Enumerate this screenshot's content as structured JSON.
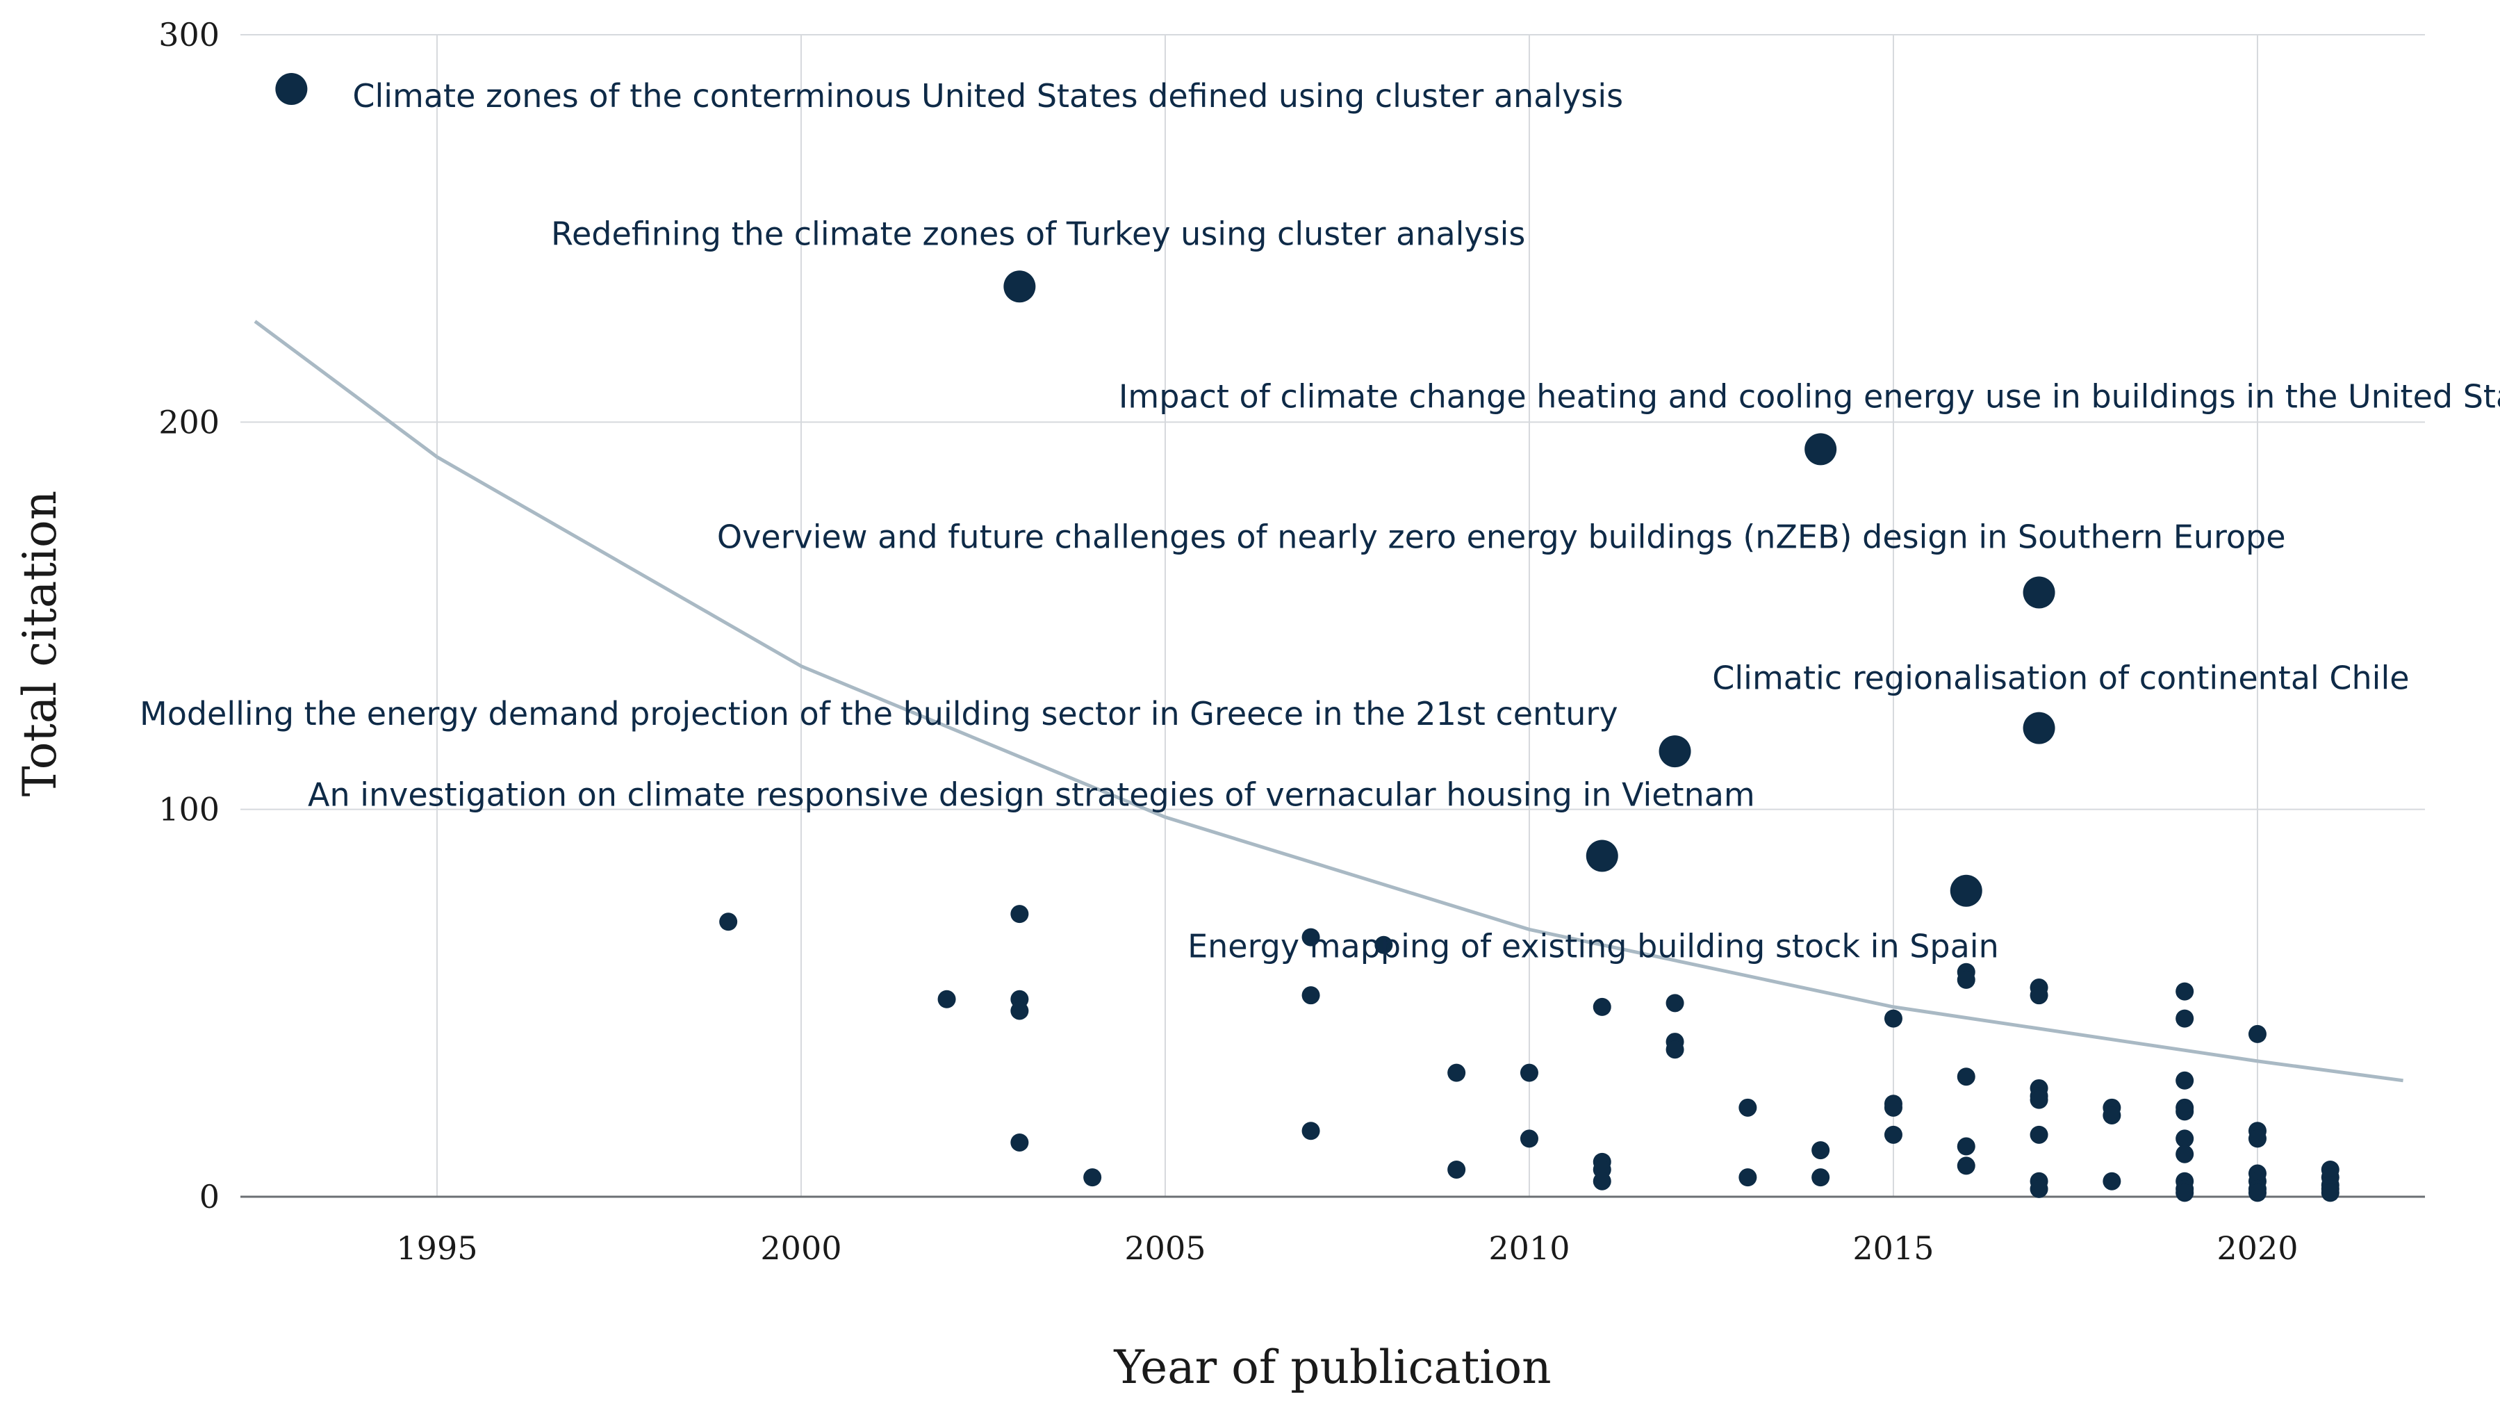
{
  "chart_data": {
    "type": "scatter",
    "title": "",
    "xlabel": "Year of publication",
    "ylabel": "Total citation",
    "xlim": [
      1992.3,
      2022.3
    ],
    "ylim": [
      0,
      300
    ],
    "xticks": [
      1995,
      2000,
      2005,
      2010,
      2015,
      2020
    ],
    "yticks": [
      0,
      100,
      200,
      300
    ],
    "grid": true,
    "colors": {
      "point": "#0d2b45",
      "trend": "#a9b9c4",
      "text": "#0e2a47"
    },
    "highlighted_papers": [
      {
        "x": 1993,
        "y": 286,
        "label": "Climate zones of the conterminous United States defined using cluster analysis"
      },
      {
        "x": 2003,
        "y": 235,
        "label": "Redefining the climate zones of Turkey using cluster analysis"
      },
      {
        "x": 2014,
        "y": 193,
        "label": "Impact of climate change heating and cooling energy use in buildings in the United Sta"
      },
      {
        "x": 2017,
        "y": 156,
        "label": "Overview and future challenges of nearly zero energy buildings (nZEB) design in Southern Europe"
      },
      {
        "x": 2017,
        "y": 121,
        "label": "Climatic regionalisation of continental Chile"
      },
      {
        "x": 2012,
        "y": 115,
        "label": "Modelling the energy demand projection of the building sector in Greece in the 21st century"
      },
      {
        "x": 2011,
        "y": 88,
        "label": "An investigation on climate responsive design strategies of vernacular housing in Vietnam"
      },
      {
        "x": 2016,
        "y": 79,
        "label": "Energy mapping of existing building stock in Spain"
      }
    ],
    "other_papers": [
      {
        "x": 1999,
        "y": 71
      },
      {
        "x": 2002,
        "y": 51
      },
      {
        "x": 2003,
        "y": 73
      },
      {
        "x": 2003,
        "y": 51
      },
      {
        "x": 2003,
        "y": 48
      },
      {
        "x": 2003,
        "y": 14
      },
      {
        "x": 2004,
        "y": 5
      },
      {
        "x": 2007,
        "y": 67
      },
      {
        "x": 2007,
        "y": 52
      },
      {
        "x": 2007,
        "y": 17
      },
      {
        "x": 2008,
        "y": 65
      },
      {
        "x": 2009,
        "y": 32
      },
      {
        "x": 2009,
        "y": 7
      },
      {
        "x": 2010,
        "y": 32
      },
      {
        "x": 2010,
        "y": 15
      },
      {
        "x": 2011,
        "y": 49
      },
      {
        "x": 2011,
        "y": 9
      },
      {
        "x": 2011,
        "y": 7
      },
      {
        "x": 2011,
        "y": 4
      },
      {
        "x": 2012,
        "y": 50
      },
      {
        "x": 2012,
        "y": 40
      },
      {
        "x": 2012,
        "y": 38
      },
      {
        "x": 2013,
        "y": 23
      },
      {
        "x": 2013,
        "y": 5
      },
      {
        "x": 2014,
        "y": 12
      },
      {
        "x": 2014,
        "y": 5
      },
      {
        "x": 2015,
        "y": 46
      },
      {
        "x": 2015,
        "y": 24
      },
      {
        "x": 2015,
        "y": 23
      },
      {
        "x": 2015,
        "y": 16
      },
      {
        "x": 2016,
        "y": 58
      },
      {
        "x": 2016,
        "y": 56
      },
      {
        "x": 2016,
        "y": 31
      },
      {
        "x": 2016,
        "y": 13
      },
      {
        "x": 2016,
        "y": 8
      },
      {
        "x": 2017,
        "y": 54
      },
      {
        "x": 2017,
        "y": 52
      },
      {
        "x": 2017,
        "y": 28
      },
      {
        "x": 2017,
        "y": 26
      },
      {
        "x": 2017,
        "y": 25
      },
      {
        "x": 2017,
        "y": 16
      },
      {
        "x": 2017,
        "y": 4
      },
      {
        "x": 2017,
        "y": 2
      },
      {
        "x": 2018,
        "y": 23
      },
      {
        "x": 2018,
        "y": 21
      },
      {
        "x": 2018,
        "y": 4
      },
      {
        "x": 2019,
        "y": 53
      },
      {
        "x": 2019,
        "y": 46
      },
      {
        "x": 2019,
        "y": 30
      },
      {
        "x": 2019,
        "y": 23
      },
      {
        "x": 2019,
        "y": 22
      },
      {
        "x": 2019,
        "y": 15
      },
      {
        "x": 2019,
        "y": 11
      },
      {
        "x": 2019,
        "y": 4
      },
      {
        "x": 2019,
        "y": 2
      },
      {
        "x": 2019,
        "y": 1
      },
      {
        "x": 2020,
        "y": 42
      },
      {
        "x": 2020,
        "y": 17
      },
      {
        "x": 2020,
        "y": 15
      },
      {
        "x": 2020,
        "y": 6
      },
      {
        "x": 2020,
        "y": 4
      },
      {
        "x": 2020,
        "y": 2
      },
      {
        "x": 2020,
        "y": 1
      },
      {
        "x": 2021,
        "y": 7
      },
      {
        "x": 2021,
        "y": 5
      },
      {
        "x": 2021,
        "y": 3
      },
      {
        "x": 2021,
        "y": 2
      },
      {
        "x": 2021,
        "y": 1
      }
    ],
    "trend_line": {
      "type": "exponential",
      "points": [
        {
          "x": 1992.5,
          "y": 226
        },
        {
          "x": 1995,
          "y": 191
        },
        {
          "x": 2000,
          "y": 137
        },
        {
          "x": 2005,
          "y": 98
        },
        {
          "x": 2010,
          "y": 69
        },
        {
          "x": 2015,
          "y": 49
        },
        {
          "x": 2020,
          "y": 35
        },
        {
          "x": 2022,
          "y": 30
        }
      ]
    }
  }
}
